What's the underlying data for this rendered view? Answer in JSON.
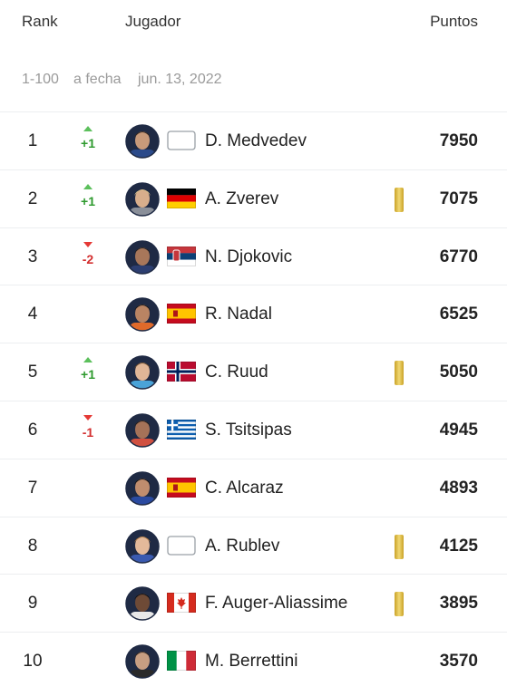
{
  "header": {
    "rank": "Rank",
    "player": "Jugador",
    "points": "Puntos"
  },
  "subheader": {
    "range": "1-100",
    "date_label": "a fecha",
    "date": "jun. 13, 2022"
  },
  "rows": [
    {
      "rank": 1,
      "change": "+1",
      "name": "D. Medvedev",
      "points": 7950
    },
    {
      "rank": 2,
      "change": "+1",
      "name": "A. Zverev",
      "points": 7075
    },
    {
      "rank": 3,
      "change": "-2",
      "name": "N. Djokovic",
      "points": 6770
    },
    {
      "rank": 4,
      "name": "R. Nadal",
      "points": 6525
    },
    {
      "rank": 5,
      "change": "+1",
      "name": "C. Ruud",
      "points": 5050
    },
    {
      "rank": 6,
      "change": "-1",
      "name": "S. Tsitsipas",
      "points": 4945
    },
    {
      "rank": 7,
      "name": "C. Alcaraz",
      "points": 4893
    },
    {
      "rank": 8,
      "name": "A. Rublev",
      "points": 4125
    },
    {
      "rank": 9,
      "name": "F. Auger-Aliassime",
      "points": 3895
    },
    {
      "rank": 10,
      "name": "M. Berrettini",
      "points": 3570
    }
  ]
}
